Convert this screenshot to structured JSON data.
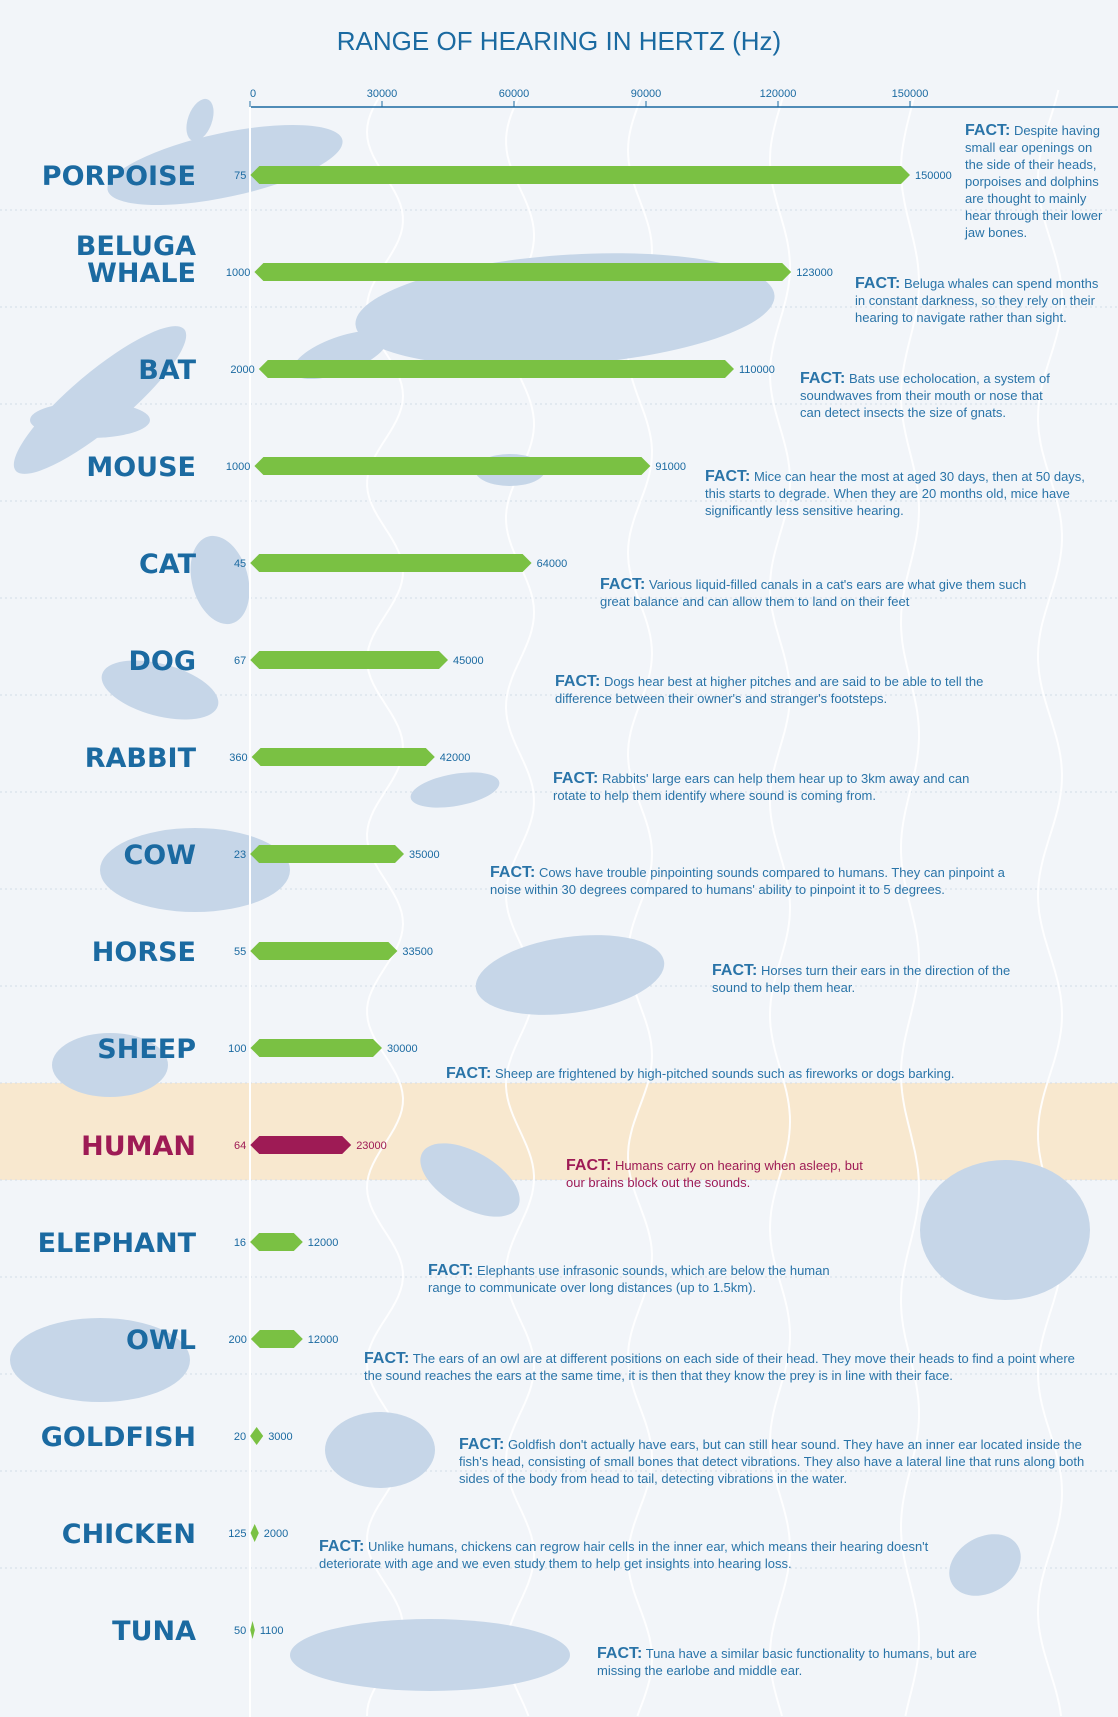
{
  "colors": {
    "accent": "#1b6aa1",
    "bar": "#7ac143",
    "human_bar": "#9e1b55",
    "human_band": "#f8e8cf",
    "silhouette": "#c6d6e8"
  },
  "chart_data": {
    "type": "bar",
    "orientation": "horizontal",
    "title": "RANGE OF HEARING IN HERTZ (Hz)",
    "xlabel": "",
    "ylabel": "",
    "xlim": [
      0,
      150000
    ],
    "xticks": [
      "0",
      "30000",
      "60000",
      "90000",
      "120000",
      "150000"
    ],
    "categories": [
      "PORPOISE",
      "BELUGA WHALE",
      "BAT",
      "MOUSE",
      "CAT",
      "DOG",
      "RABBIT",
      "COW",
      "HORSE",
      "SHEEP",
      "HUMAN",
      "ELEPHANT",
      "OWL",
      "GOLDFISH",
      "CHICKEN",
      "TUNA"
    ],
    "series": [
      {
        "low": [
          75,
          1000,
          2000,
          1000,
          45,
          67,
          360,
          23,
          55,
          100,
          64,
          16,
          200,
          20,
          125,
          50
        ],
        "high": [
          150000,
          123000,
          110000,
          91000,
          64000,
          45000,
          42000,
          35000,
          33500,
          30000,
          23000,
          12000,
          12000,
          3000,
          2000,
          1100
        ]
      }
    ],
    "low_labels": [
      "75",
      "1000",
      "2000",
      "1000",
      "45",
      "67",
      "360",
      "23",
      "55",
      "100",
      "64",
      "16",
      "200",
      "20",
      "125",
      "50"
    ],
    "high_labels": [
      "150000",
      "123000",
      "110000",
      "91000",
      "64000",
      "45000",
      "42000",
      "35000",
      "33500",
      "30000",
      "23000",
      "12000",
      "12000",
      "3000",
      "2000",
      "1100"
    ],
    "highlight": "HUMAN"
  },
  "facts": {
    "label": "FACT:",
    "items": [
      "Despite having small ear openings on the side of their heads, porpoises and dolphins are thought to mainly hear through their lower jaw bones.",
      "Beluga whales can spend months in constant darkness, so they rely on their hearing to navigate rather than sight.",
      "Bats use echolocation, a system of soundwaves from their mouth or nose that can detect insects the size of gnats.",
      "Mice can hear the most at aged 30 days, then at 50 days, this starts to degrade. When they are 20 months old, mice have significantly less sensitive hearing.",
      "Various liquid-filled canals in a cat's ears are what give them such great balance and can allow them to land on their feet",
      "Dogs hear best at higher pitches and are said to be able to tell the difference between their owner's and stranger's footsteps.",
      "Rabbits' large ears can help them hear up to 3km away and can rotate to help them identify where sound is coming from.",
      "Cows have trouble pinpointing sounds compared to humans. They can pinpoint a noise within 30 degrees compared to humans' ability to pinpoint it to 5 degrees.",
      "Horses turn their ears in the direction of the sound to help them hear.",
      "Sheep are frightened by high-pitched sounds such as fireworks or dogs barking.",
      "Humans carry on hearing when asleep, but our brains block out the sounds.",
      "Elephants use infrasonic sounds, which are below the human range to communicate over long distances (up to 1.5km).",
      "The ears of an owl are at different positions on each side of their head. They move their heads to find a point where the sound reaches the ears at the same time, it is then that they know the prey is in line with their face.",
      "Goldfish don't actually have ears, but can still hear sound. They have an inner ear located inside the fish's head, consisting of small bones that detect vibrations. They also have a lateral line that runs along both sides of the body from head to tail, detecting vibrations in the water.",
      "Unlike humans, chickens can regrow hair cells in the inner ear, which means their hearing doesn't deteriorate with age and we even study them to help get insights into hearing loss.",
      "Tuna have a similar basic functionality to humans, but are missing the earlobe and middle ear."
    ]
  }
}
